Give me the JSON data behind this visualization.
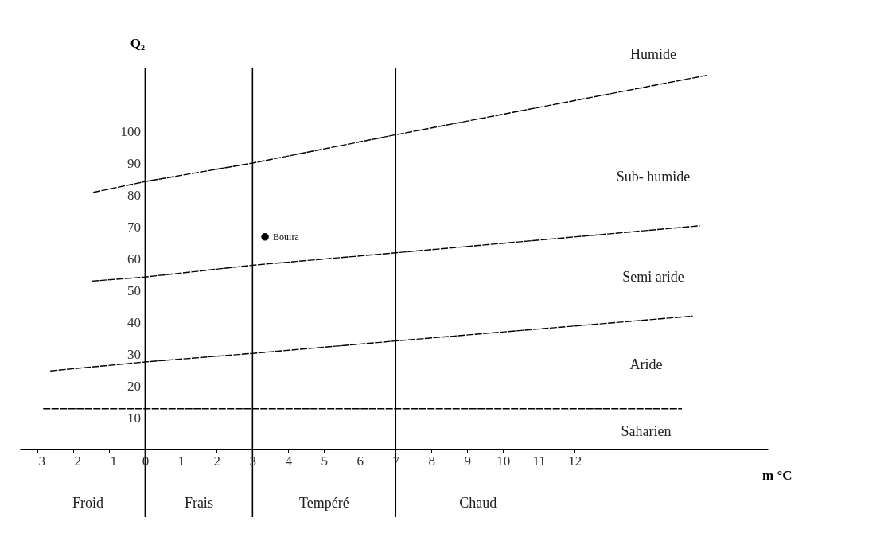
{
  "chart_data": {
    "type": "line",
    "xlabel": "m °C",
    "ylabel": "Q₂",
    "xlim": [
      -3.5,
      17.4
    ],
    "ylim": [
      0,
      120
    ],
    "xticks": [
      -3,
      -2,
      -1,
      0,
      1,
      2,
      3,
      4,
      5,
      6,
      7,
      8,
      9,
      10,
      11,
      12
    ],
    "yticks": [
      10,
      20,
      30,
      40,
      50,
      60,
      70,
      80,
      90,
      100
    ],
    "grid": false,
    "series": [
      {
        "color": "#000000",
        "line_style": "dashed",
        "x": [
          -1.45,
          0,
          3,
          7,
          15.7
        ],
        "values": [
          80.8,
          84.2,
          90,
          98.9,
          117.6
        ]
      },
      {
        "color": "#000000",
        "line_style": "dashed",
        "x": [
          -1.5,
          0,
          3,
          7,
          15.5
        ],
        "values": [
          52.9,
          54.2,
          57.9,
          61.8,
          70.3
        ]
      },
      {
        "color": "#000000",
        "line_style": "dashed",
        "x": [
          -2.65,
          0,
          3,
          7,
          15.3
        ],
        "values": [
          24.7,
          27.5,
          30.2,
          34.1,
          41.9
        ]
      },
      {
        "color": "#000000",
        "line_style": "dashed",
        "x": [
          -2.85,
          15
        ],
        "values": [
          12.8,
          12.8
        ]
      },
      {
        "type": "scatter",
        "name": "Bouira",
        "color": "#000000",
        "marker": "circle",
        "x": [
          3.35
        ],
        "values": [
          66.8
        ]
      }
    ],
    "ref_lines": [
      {
        "axis": "x",
        "value": 0,
        "color": "#000000"
      },
      {
        "axis": "x",
        "value": 3,
        "color": "#000000"
      },
      {
        "axis": "x",
        "value": 7,
        "color": "#000000"
      }
    ],
    "annotations": [
      "Humide",
      "Sub- humide",
      "Semi aride",
      "Aride",
      "Saharien",
      "Froid",
      "Frais",
      "Tempéré",
      "Chaud"
    ]
  }
}
